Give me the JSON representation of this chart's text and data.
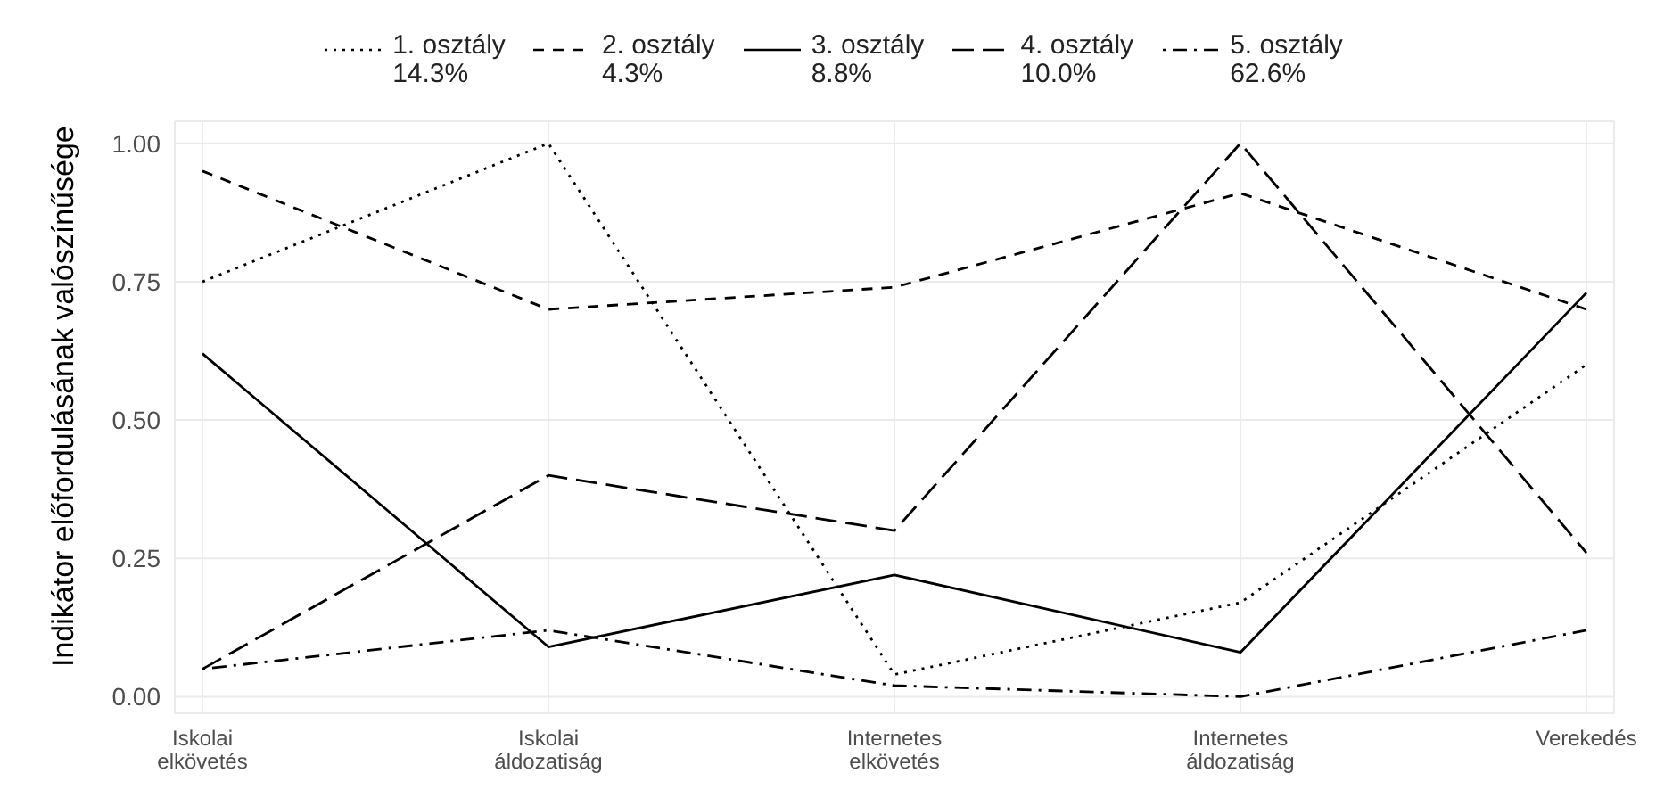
{
  "chart_data": {
    "type": "line",
    "ylabel": "Indikátor előfordulásának valószínűsége",
    "categories": [
      "Iskolai elkövetés",
      "Iskolai áldozatiság",
      "Internetes elkövetés",
      "Internetes áldozatiság",
      "Verekedés"
    ],
    "series": [
      {
        "name": "1. osztály\n14.3%",
        "color": "#000000",
        "line_style": "dotted",
        "values": [
          0.75,
          1.0,
          0.04,
          0.17,
          0.6
        ]
      },
      {
        "name": "2. osztály\n4.3%",
        "color": "#000000",
        "line_style": "dashed",
        "values": [
          0.95,
          0.7,
          0.74,
          0.91,
          0.7
        ]
      },
      {
        "name": "3. osztály\n8.8%",
        "color": "#000000",
        "line_style": "solid",
        "values": [
          0.62,
          0.09,
          0.22,
          0.08,
          0.73
        ]
      },
      {
        "name": "4. osztály\n10.0%",
        "color": "#000000",
        "line_style": "longdash",
        "values": [
          0.05,
          0.4,
          0.3,
          1.0,
          0.26
        ]
      },
      {
        "name": "5. osztály\n62.6%",
        "color": "#000000",
        "line_style": "dotdash",
        "values": [
          0.05,
          0.12,
          0.02,
          0.0,
          0.12
        ]
      }
    ],
    "ylim": [
      -0.03,
      1.04
    ],
    "yticks": [
      {
        "value": 0,
        "label": "0.00"
      },
      {
        "value": 0.25,
        "label": "0.25"
      },
      {
        "value": 0.5,
        "label": "0.50"
      },
      {
        "value": 0.75,
        "label": "0.75"
      },
      {
        "value": 1,
        "label": "1.00"
      }
    ],
    "grid": true,
    "legend": "top",
    "marker": "none"
  }
}
